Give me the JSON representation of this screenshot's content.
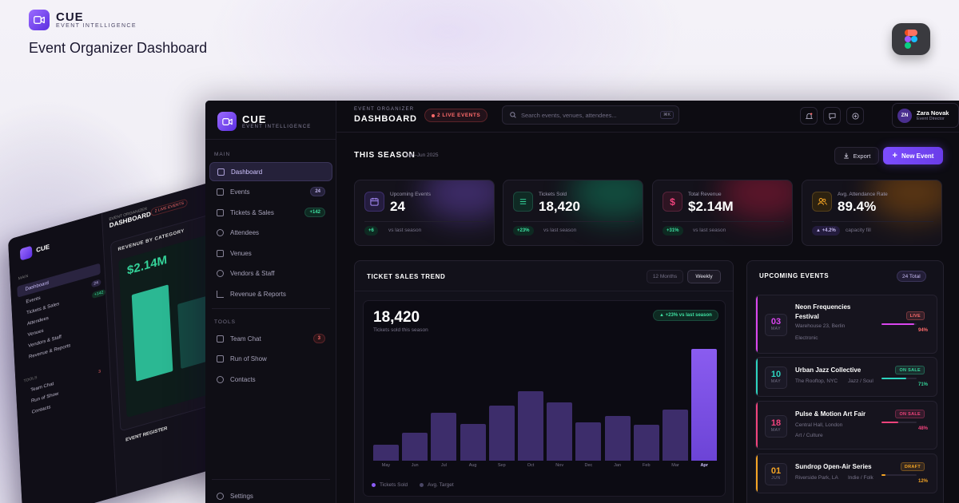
{
  "brand": {
    "name": "CUE",
    "tagline": "EVENT INTELLIGENCE"
  },
  "heading": "Event Organizer Dashboard",
  "back_screen": {
    "header_kicker": "EVENT ORGANIZER",
    "header_title": "DASHBOARD",
    "live_label": "2 LIVE EVENTS",
    "main_label": "MAIN",
    "nav": [
      "Dashboard",
      "Events",
      "Tickets & Sales",
      "Attendees",
      "Venues",
      "Vendors & Staff",
      "Revenue & Reports"
    ],
    "nav_badges": [
      "24",
      "+142"
    ],
    "tools_label": "TOOLS",
    "tools": [
      "Team Chat",
      "Run of Show",
      "Contacts"
    ],
    "tools_badge": "3",
    "revenue_title": "REVENUE BY CATEGORY",
    "revenue_value": "$2.14M",
    "register_title": "EVENT REGISTER"
  },
  "sidebar": {
    "main_label": "MAIN",
    "items": [
      {
        "label": "Dashboard",
        "badge": ""
      },
      {
        "label": "Events",
        "badge": "24"
      },
      {
        "label": "Tickets & Sales",
        "badge": "+142"
      },
      {
        "label": "Attendees",
        "badge": ""
      },
      {
        "label": "Venues",
        "badge": ""
      },
      {
        "label": "Vendors & Staff",
        "badge": ""
      },
      {
        "label": "Revenue & Reports",
        "badge": ""
      }
    ],
    "tools_label": "TOOLS",
    "tools": [
      {
        "label": "Team Chat",
        "badge": "3"
      },
      {
        "label": "Run of Show",
        "badge": ""
      },
      {
        "label": "Contacts",
        "badge": ""
      }
    ],
    "settings": "Settings"
  },
  "topbar": {
    "kicker": "EVENT ORGANIZER",
    "title": "DASHBOARD",
    "live": "2 LIVE EVENTS",
    "search_placeholder": "Search events, venues, attendees...",
    "search_shortcut": "⌘K",
    "user_name": "Zara Novak",
    "user_role": "Event Director",
    "user_initials": "ZN"
  },
  "season": {
    "title": "THIS SEASON",
    "range": "Apr–Jun 2025",
    "export": "Export",
    "new_event": "New Event"
  },
  "stats": [
    {
      "label": "Upcoming Events",
      "value": "24",
      "change": "+6",
      "note": "vs last season",
      "color": "#8b5cf6"
    },
    {
      "label": "Tickets Sold",
      "value": "18,420",
      "change": "+23%",
      "note": "vs last season",
      "color": "#34d399"
    },
    {
      "label": "Total Revenue",
      "value": "$2.14M",
      "change": "+31%",
      "note": "vs last season",
      "color": "#f0437c"
    },
    {
      "label": "Avg. Attendance Rate",
      "value": "89.4%",
      "change": "▲ +4.2%",
      "note": "capacity fill",
      "color": "#f5a524"
    }
  ],
  "trend": {
    "title": "TICKET SALES TREND",
    "toggle_a": "12 Months",
    "toggle_b": "Weekly",
    "big": "18,420",
    "sub": "Tickets sold this season",
    "chip": "▲ +23% vs last season",
    "legend_a": "Tickets Sold",
    "legend_b": "Avg. Target"
  },
  "chart_data": {
    "type": "bar",
    "categories": [
      "May",
      "Jun",
      "Jul",
      "Aug",
      "Sep",
      "Oct",
      "Nov",
      "Dec",
      "Jan",
      "Feb",
      "Mar",
      "Apr"
    ],
    "values": [
      14,
      25,
      43,
      33,
      49,
      62,
      52,
      34,
      40,
      32,
      46,
      100
    ],
    "highlight": "Apr",
    "series_names": [
      "Tickets Sold",
      "Avg. Target"
    ]
  },
  "upcoming": {
    "title": "UPCOMING EVENTS",
    "total": "24 Total",
    "events": [
      {
        "day": "03",
        "month": "MAY",
        "name": "Neon Frequencies Festival",
        "venue": "Warehouse 23, Berlin",
        "genre": "Electronic",
        "status": "LIVE",
        "pct": "94%",
        "fill": 0.94,
        "color": "#d946ef",
        "status_color": "#ff6b6b"
      },
      {
        "day": "10",
        "month": "MAY",
        "name": "Urban Jazz Collective",
        "venue": "The Rooftop, NYC",
        "genre": "Jazz / Soul",
        "status": "ON SALE",
        "pct": "71%",
        "fill": 0.71,
        "color": "#2dd4bf",
        "status_color": "#34d399"
      },
      {
        "day": "18",
        "month": "MAY",
        "name": "Pulse & Motion Art Fair",
        "venue": "Central Hall, London",
        "genre": "Art / Culture",
        "status": "ON SALE",
        "pct": "48%",
        "fill": 0.48,
        "color": "#f0437c",
        "status_color": "#f0437c"
      },
      {
        "day": "01",
        "month": "JUN",
        "name": "Sundrop Open-Air Series",
        "venue": "Riverside Park, LA",
        "genre": "Indie / Folk",
        "status": "DRAFT",
        "pct": "12%",
        "fill": 0.12,
        "color": "#f5a524",
        "status_color": "#f5a524"
      }
    ]
  }
}
